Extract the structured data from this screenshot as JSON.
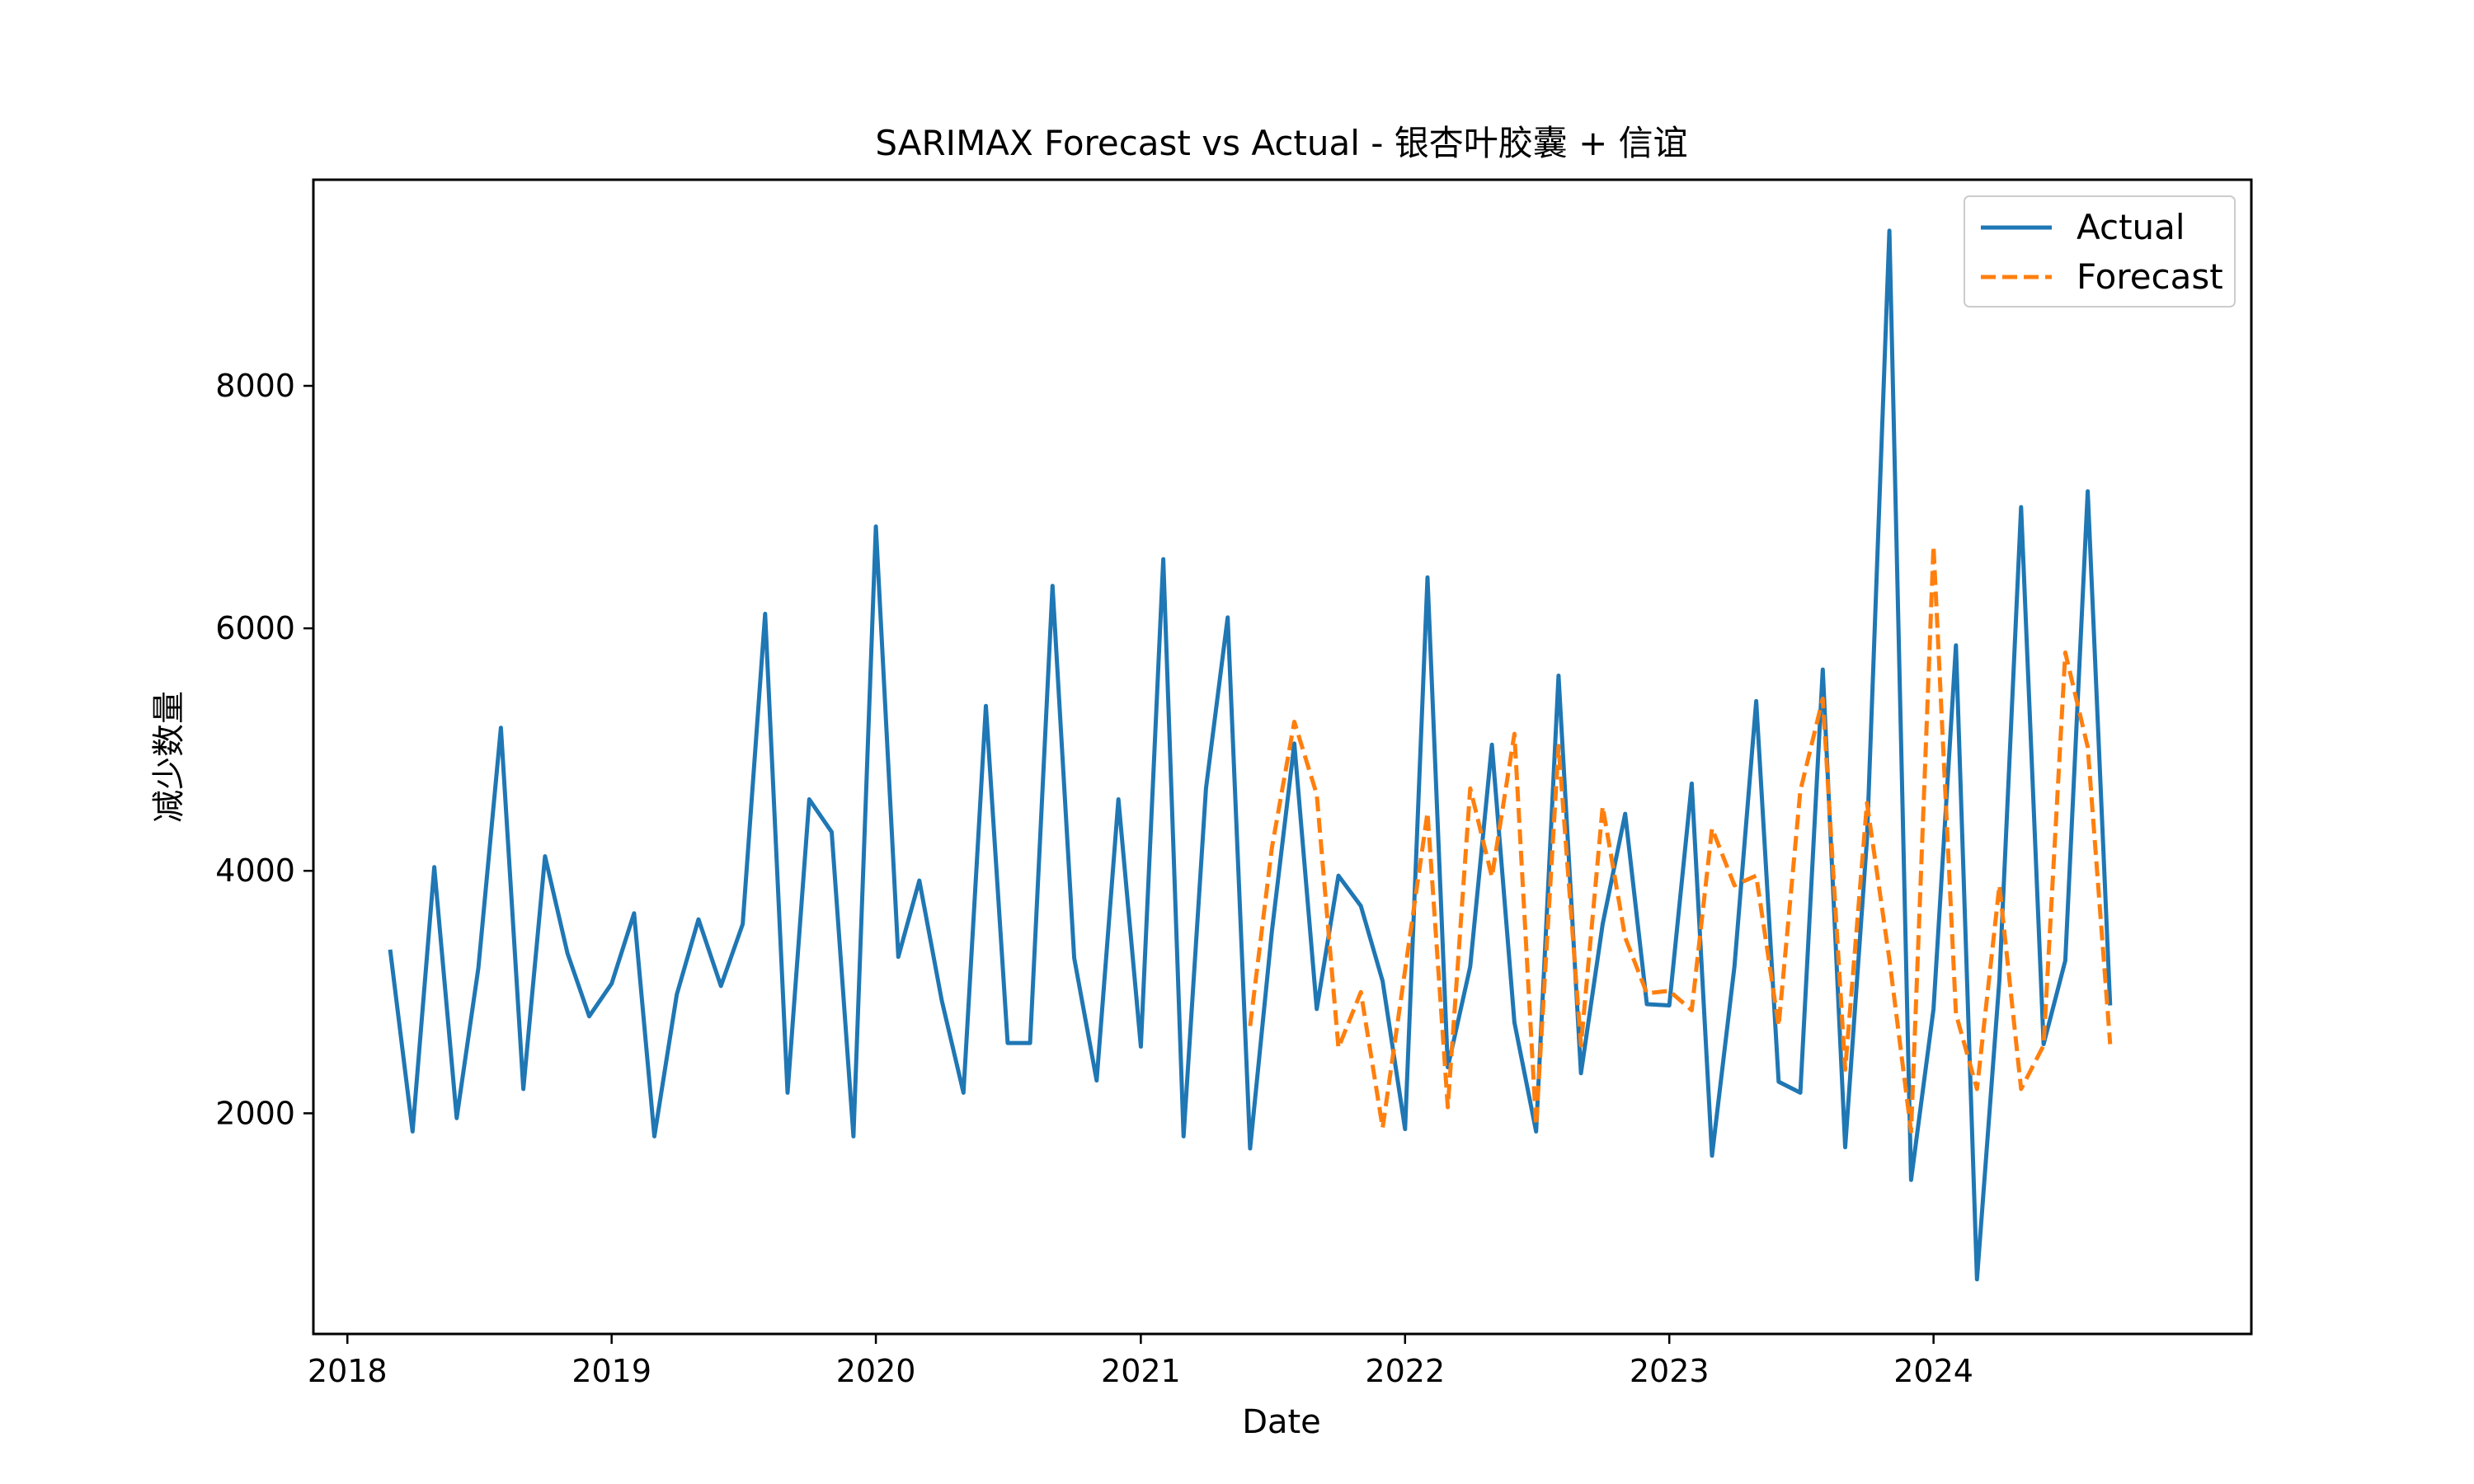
{
  "chart_data": {
    "type": "line",
    "title": "SARIMAX Forecast vs Actual - 银杏叶胶囊 + 信谊",
    "xlabel": "Date",
    "ylabel": "减少数量",
    "x_ticks": [
      "2018",
      "2019",
      "2020",
      "2021",
      "2022",
      "2023",
      "2024"
    ],
    "y_ticks": [
      "2000",
      "4000",
      "6000",
      "8000"
    ],
    "xlim": [
      "2017-11-15",
      "2025-03-15"
    ],
    "ylim": [
      180,
      9700
    ],
    "grid": false,
    "legend_position": "top-right",
    "colors": {
      "actual": "#1f77b4",
      "forecast": "#ff7f0e"
    },
    "series": [
      {
        "name": "Actual",
        "style": "solid",
        "x": [
          "2018-03",
          "2018-04",
          "2018-05",
          "2018-06",
          "2018-07",
          "2018-08",
          "2018-09",
          "2018-10",
          "2018-11",
          "2018-12",
          "2019-01",
          "2019-02",
          "2019-03",
          "2019-04",
          "2019-05",
          "2019-06",
          "2019-07",
          "2019-08",
          "2019-09",
          "2019-10",
          "2019-11",
          "2019-12",
          "2020-01",
          "2020-02",
          "2020-03",
          "2020-04",
          "2020-05",
          "2020-06",
          "2020-07",
          "2020-08",
          "2020-09",
          "2020-10",
          "2020-11",
          "2020-12",
          "2021-01",
          "2021-02",
          "2021-03",
          "2021-04",
          "2021-05",
          "2021-06",
          "2021-07",
          "2021-08",
          "2021-09",
          "2021-10",
          "2021-11",
          "2021-12",
          "2022-01",
          "2022-02",
          "2022-03",
          "2022-04",
          "2022-05",
          "2022-06",
          "2022-07",
          "2022-08",
          "2022-09",
          "2022-10",
          "2022-11",
          "2022-12",
          "2023-01",
          "2023-02",
          "2023-03",
          "2023-04",
          "2023-05",
          "2023-06",
          "2023-07",
          "2023-08",
          "2023-09",
          "2023-10",
          "2023-11",
          "2023-12",
          "2024-01",
          "2024-02",
          "2024-03",
          "2024-04",
          "2024-05",
          "2024-06",
          "2024-07",
          "2024-08",
          "2024-09"
        ],
        "values": [
          3350,
          1850,
          4030,
          1960,
          3200,
          5180,
          2200,
          4120,
          3320,
          2800,
          3070,
          3650,
          1810,
          2980,
          3600,
          3050,
          3560,
          6120,
          2170,
          4590,
          4320,
          1810,
          6840,
          3290,
          3920,
          2930,
          2170,
          5360,
          2580,
          2580,
          6350,
          3280,
          2270,
          4590,
          2550,
          6570,
          1810,
          4680,
          6090,
          1710,
          3500,
          5050,
          2860,
          3960,
          3710,
          3090,
          1870,
          6420,
          2380,
          3210,
          5040,
          2750,
          1850,
          5610,
          2330,
          3560,
          4470,
          2900,
          2890,
          4720,
          1650,
          3210,
          5400,
          2260,
          2170,
          5660,
          1720,
          4260,
          9280,
          1450,
          2860,
          5860,
          630,
          3100,
          7000,
          2570,
          3260,
          7130,
          2890
        ]
      },
      {
        "name": "Forecast",
        "style": "dashed",
        "x": [
          "2021-06",
          "2021-07",
          "2021-08",
          "2021-09",
          "2021-10",
          "2021-11",
          "2021-12",
          "2022-01",
          "2022-02",
          "2022-03",
          "2022-04",
          "2022-05",
          "2022-06",
          "2022-07",
          "2022-08",
          "2022-09",
          "2022-10",
          "2022-11",
          "2022-12",
          "2023-01",
          "2023-02",
          "2023-03",
          "2023-04",
          "2023-05",
          "2023-06",
          "2023-07",
          "2023-08",
          "2023-09",
          "2023-10",
          "2023-11",
          "2023-12",
          "2024-01",
          "2024-02",
          "2024-03",
          "2024-04",
          "2024-05",
          "2024-06",
          "2024-07",
          "2024-08",
          "2024-09"
        ],
        "values": [
          2720,
          4190,
          5230,
          4630,
          2540,
          3000,
          1880,
          3180,
          4480,
          2050,
          4680,
          3950,
          5130,
          1900,
          5030,
          2560,
          4530,
          3450,
          2990,
          3010,
          2850,
          4350,
          3880,
          3960,
          2720,
          4660,
          5420,
          2360,
          4560,
          3270,
          1850,
          6680,
          2820,
          2200,
          3880,
          2200,
          2560,
          5800,
          5020,
          2570
        ]
      }
    ]
  }
}
